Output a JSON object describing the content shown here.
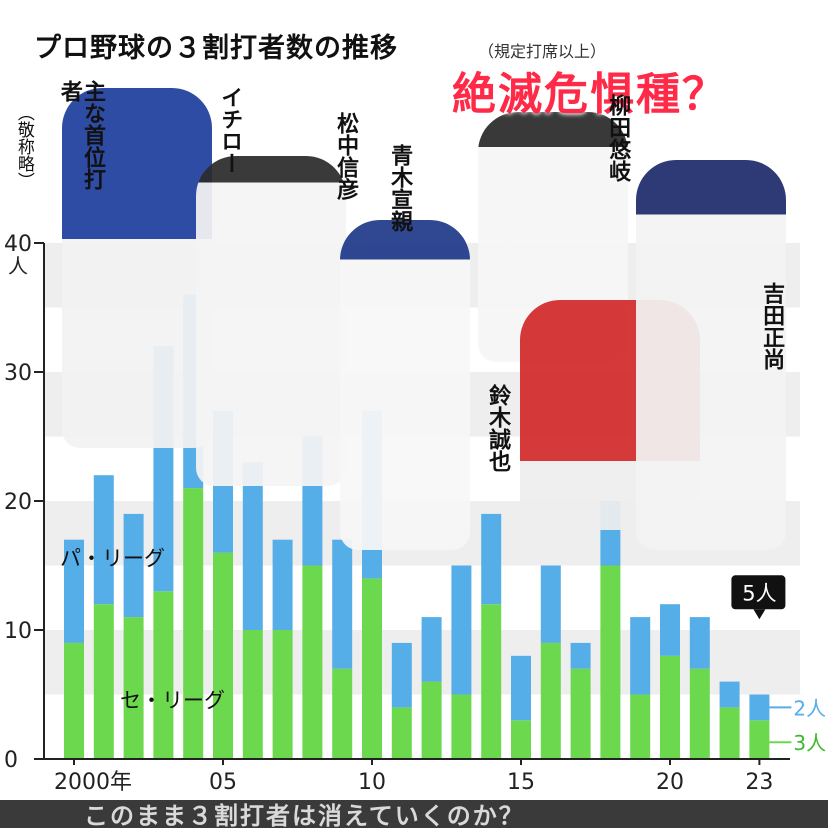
{
  "page": {
    "title": "プロ野球の３割打者数の推移",
    "title_note": "（規定打席以上）",
    "stamp": "絶滅危惧種？",
    "players_heading": "主な首位打者",
    "players_heading_note": "（敬称略）",
    "players": [
      "イチロー",
      "松中信彦",
      "青木宣親",
      "柳田悠岐",
      "鈴木誠也",
      "吉田正尚"
    ],
    "caption": "このまま３割打者は消えていくのか？"
  },
  "chart_data": {
    "type": "bar",
    "stacked": true,
    "x_tick_labels": [
      "2000年",
      "05",
      "10",
      "15",
      "20",
      "23"
    ],
    "x": [
      2000,
      2001,
      2002,
      2003,
      2004,
      2005,
      2006,
      2007,
      2008,
      2009,
      2010,
      2011,
      2012,
      2013,
      2014,
      2015,
      2016,
      2017,
      2018,
      2019,
      2020,
      2021,
      2022,
      2023
    ],
    "y_unit": "人",
    "ylim": [
      0,
      40
    ],
    "yticks": [
      0,
      10,
      20,
      30,
      40
    ],
    "series": [
      {
        "name": "セ・リーグ",
        "color": "#6bd84e",
        "values": [
          9,
          12,
          11,
          13,
          21,
          16,
          10,
          10,
          15,
          7,
          14,
          4,
          6,
          5,
          12,
          3,
          9,
          7,
          15,
          5,
          8,
          7,
          4,
          3
        ]
      },
      {
        "name": "パ・リーグ",
        "color": "#56aee8",
        "values": [
          8,
          10,
          8,
          19,
          15,
          11,
          13,
          7,
          10,
          10,
          13,
          5,
          5,
          10,
          7,
          5,
          6,
          2,
          5,
          6,
          4,
          4,
          2,
          2
        ]
      }
    ],
    "annotations": {
      "total_2023": "5人",
      "pa_2023": "2人",
      "se_2023": "3人"
    },
    "grid": "horizontal bands"
  }
}
